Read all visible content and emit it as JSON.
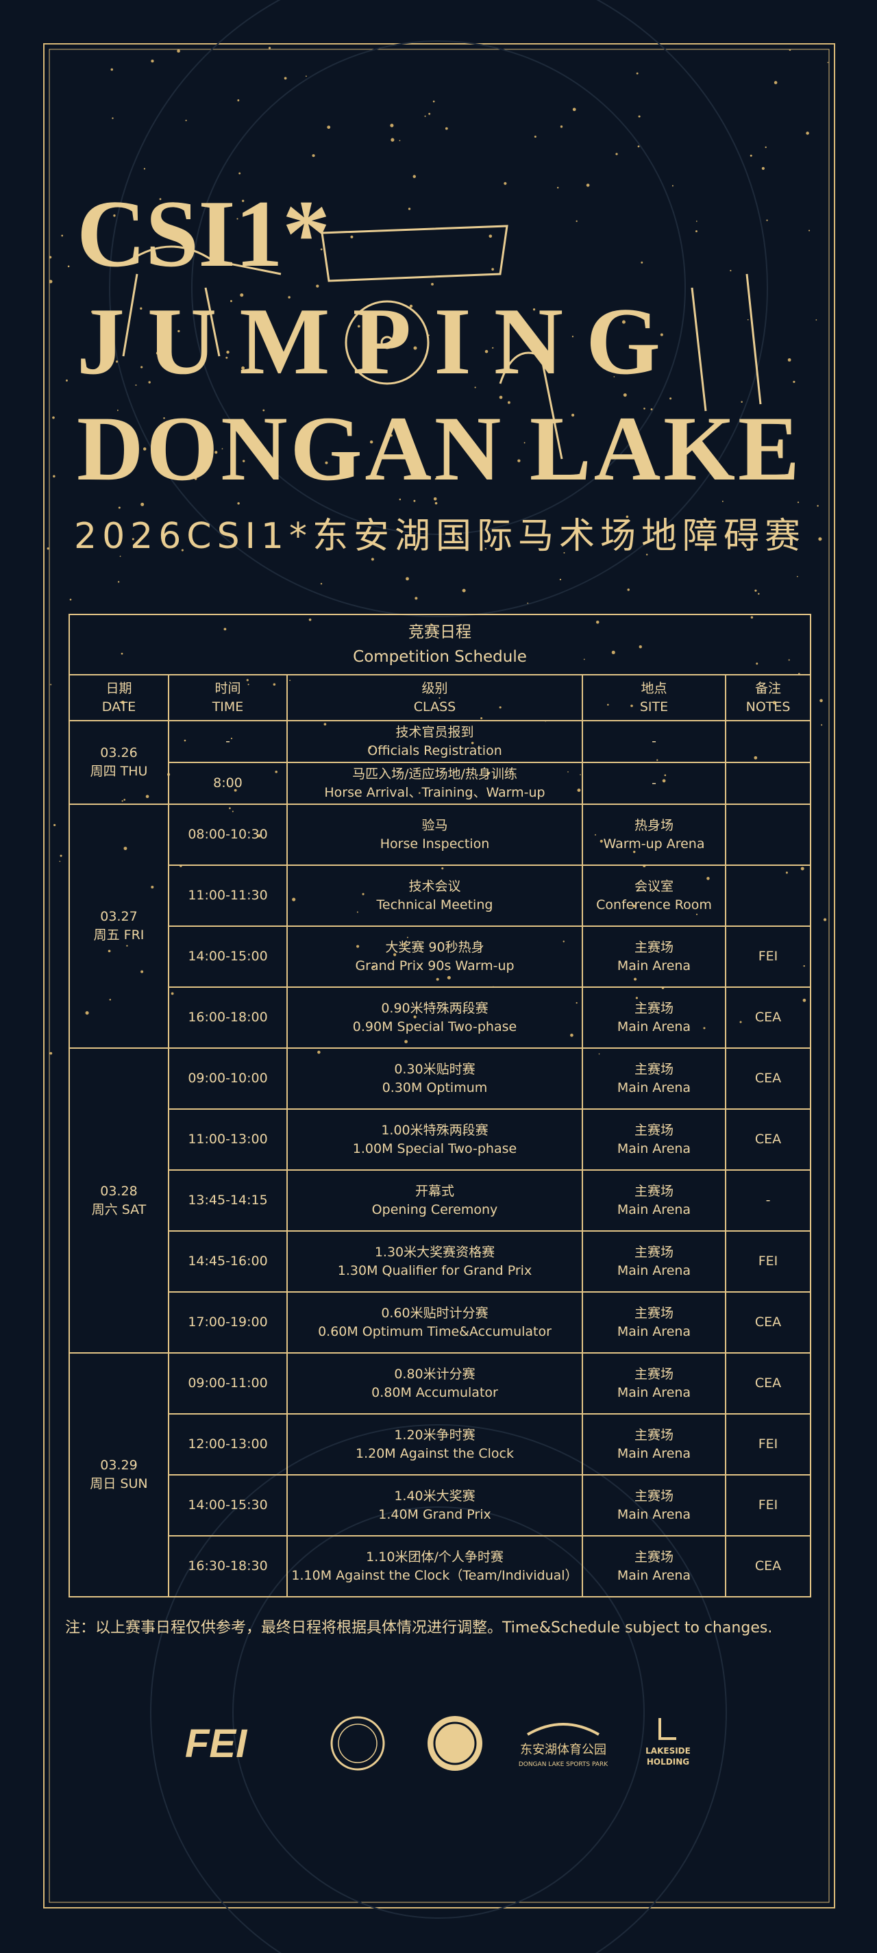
{
  "header": {
    "line1": "CSI1*",
    "line2": "JUMPING",
    "line3": "DONGAN LAKE",
    "subtitle": "2026CSI1*东安湖国际马术场地障碍赛"
  },
  "schedule": {
    "title_cn": "竞赛日程",
    "title_en": "Competition Schedule",
    "columns": [
      {
        "cn": "日期",
        "en": "DATE"
      },
      {
        "cn": "时间",
        "en": "TIME"
      },
      {
        "cn": "级别",
        "en": "CLASS"
      },
      {
        "cn": "地点",
        "en": "SITE"
      },
      {
        "cn": "备注",
        "en": "NOTES"
      }
    ],
    "days": [
      {
        "date": "03.26",
        "weekday": "周四 THU",
        "rows": [
          {
            "time": "-",
            "class_cn": "技术官员报到",
            "class_en": "Officials Registration",
            "site": "-"
          },
          {
            "time": "8:00",
            "class_cn": "马匹入场/适应场地/热身训练",
            "class_en": "Horse Arrival、Training、Warm-up",
            "site": "-"
          }
        ]
      },
      {
        "date": "03.27",
        "weekday": "周五 FRI",
        "rows": [
          {
            "time": "08:00-10:30",
            "class_cn": "验马",
            "class_en": "Horse Inspection",
            "site_cn": "热身场",
            "site_en": "Warm-up Arena"
          },
          {
            "time": "11:00-11:30",
            "class_cn": "技术会议",
            "class_en": "Technical Meeting",
            "site_cn": "会议室",
            "site_en": "Conference Room"
          },
          {
            "time": "14:00-15:00",
            "class_cn": "大奖赛 90秒热身",
            "class_en": "Grand Prix 90s Warm-up",
            "site_cn": "主赛场",
            "site_en": "Main Arena",
            "notes": "FEI"
          },
          {
            "time": "16:00-18:00",
            "class_cn": "0.90米特殊两段赛",
            "class_en": "0.90M Special Two-phase",
            "site_cn": "主赛场",
            "site_en": "Main Arena",
            "notes": "CEA"
          }
        ]
      },
      {
        "date": "03.28",
        "weekday": "周六 SAT",
        "rows": [
          {
            "time": "09:00-10:00",
            "class_cn": "0.30米贴时赛",
            "class_en": "0.30M Optimum",
            "site_cn": "主赛场",
            "site_en": "Main Arena",
            "notes": "CEA"
          },
          {
            "time": "11:00-13:00",
            "class_cn": "1.00米特殊两段赛",
            "class_en": "1.00M Special Two-phase",
            "site_cn": "主赛场",
            "site_en": "Main Arena",
            "notes": "CEA"
          },
          {
            "time": "13:45-14:15",
            "class_cn": "开幕式",
            "class_en": "Opening Ceremony",
            "site_cn": "主赛场",
            "site_en": "Main Arena",
            "notes": "-"
          },
          {
            "time": "14:45-16:00",
            "class_cn": "1.30米大奖赛资格赛",
            "class_en": "1.30M Qualifier for Grand Prix",
            "site_cn": "主赛场",
            "site_en": "Main Arena",
            "notes": "FEI"
          },
          {
            "time": "17:00-19:00",
            "class_cn": "0.60米贴时计分赛",
            "class_en": "0.60M Optimum Time&Accumulator",
            "site_cn": "主赛场",
            "site_en": "Main Arena",
            "notes": "CEA"
          }
        ]
      },
      {
        "date": "03.29",
        "weekday": "周日 SUN",
        "rows": [
          {
            "time": "09:00-11:00",
            "class_cn": "0.80米计分赛",
            "class_en": "0.80M Accumulator",
            "site_cn": "主赛场",
            "site_en": "Main Arena",
            "notes": "CEA"
          },
          {
            "time": "12:00-13:00",
            "class_cn": "1.20米争时赛",
            "class_en": "1.20M Against the Clock",
            "site_cn": "主赛场",
            "site_en": "Main Arena",
            "notes": "FEI"
          },
          {
            "time": "14:00-15:30",
            "class_cn": "1.40米大奖赛",
            "class_en": "1.40M Grand Prix",
            "site_cn": "主赛场",
            "site_en": "Main Arena",
            "notes": "FEI"
          },
          {
            "time": "16:30-18:30",
            "class_cn": "1.10米团体/个人争时赛",
            "class_en": "1.10M Against the Clock（Team/Individual）",
            "site_cn": "主赛场",
            "site_en": "Main Arena",
            "notes": "CEA"
          }
        ]
      }
    ]
  },
  "footnote": "注：以上赛事日程仅供参考，最终日程将根据具体情况进行调整。Time&Schedule subject to changes.",
  "logos": {
    "fei": "FEI",
    "park_cn": "东安湖体育公园",
    "park_en": "DONGAN LAKE SPORTS PARK",
    "lakeside": "LAKESIDE",
    "holding": "HOLDING"
  }
}
